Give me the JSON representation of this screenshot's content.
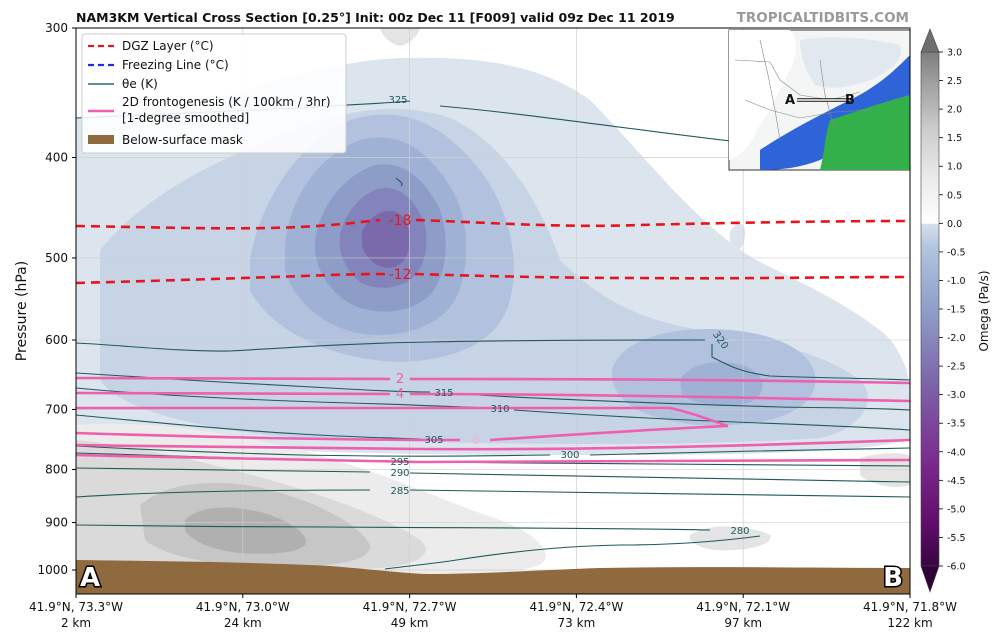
{
  "chart_data": {
    "type": "heatmap",
    "title": "NAM3KM Vertical Cross Section [0.25°] Init: 00z Dec 11 [F009] valid 09z Dec 11 2019",
    "watermark": "TROPICALTIDBITS.COM",
    "ylabel": "Pressure (hPa)",
    "y_scale": "log",
    "y_range_hPa": [
      1000,
      300
    ],
    "y_ticks": [
      "300",
      "400",
      "500",
      "600",
      "700",
      "800",
      "900",
      "1000"
    ],
    "x_ticks": [
      {
        "coord": "41.9°N, 73.3°W",
        "dist": "2 km"
      },
      {
        "coord": "41.9°N, 73.0°W",
        "dist": "24 km"
      },
      {
        "coord": "41.9°N, 72.7°W",
        "dist": "49 km"
      },
      {
        "coord": "41.9°N, 72.4°W",
        "dist": "73 km"
      },
      {
        "coord": "41.9°N, 72.1°W",
        "dist": "97 km"
      },
      {
        "coord": "41.9°N, 71.8°W",
        "dist": "122 km"
      }
    ],
    "endpoint_labels": {
      "start": "A",
      "end": "B"
    },
    "legend": [
      {
        "label": "DGZ Layer (°C)",
        "style": "dashed",
        "color": "#e8141c"
      },
      {
        "label": "Freezing Line (°C)",
        "style": "dashed",
        "color": "#1f2ee0"
      },
      {
        "label": "θe (K)",
        "style": "solid",
        "color": "#2f6a68"
      },
      {
        "label": "2D frontogenesis (K / 100km / 3hr)",
        "label2": "[1-degree smoothed]",
        "style": "solid",
        "color": "#ee5fae"
      },
      {
        "label": "Below-surface mask",
        "style": "patch",
        "color": "#8f6a3e"
      }
    ],
    "contour_labels": {
      "dgz": [
        "-18",
        "-12"
      ],
      "frontogenesis": [
        "2",
        "4",
        "6"
      ],
      "theta_e": [
        "325",
        "320",
        "315",
        "310",
        "305",
        "300",
        "295",
        "290",
        "285",
        "280"
      ]
    },
    "colorbar": {
      "label": "Omega (Pa/s)",
      "range": [
        -6.0,
        3.0
      ],
      "ticks": [
        "3.0",
        "2.5",
        "2.0",
        "1.5",
        "1.0",
        "0.5",
        "0.0",
        "-0.5",
        "-1.0",
        "-1.5",
        "-2.0",
        "-2.5",
        "-3.0",
        "-3.5",
        "-4.0",
        "-4.5",
        "-5.0",
        "-5.5",
        "-6.0"
      ],
      "colors": [
        "#f4f4f4",
        "#dbe4ee",
        "#c7d5e5",
        "#b2c3dd",
        "#9fb1d4",
        "#8e9cc8",
        "#8384bb",
        "#7b6aab",
        "#75509b",
        "#6f378b",
        "#672079",
        "#5b0f68",
        "#4c0757",
        "#3c0345",
        "#fafafa",
        "#e8e8e8",
        "#d4d4d4",
        "#bdbdbd",
        "#a4a4a4",
        "#8a8a8a",
        "#717171"
      ]
    },
    "grid": true
  }
}
